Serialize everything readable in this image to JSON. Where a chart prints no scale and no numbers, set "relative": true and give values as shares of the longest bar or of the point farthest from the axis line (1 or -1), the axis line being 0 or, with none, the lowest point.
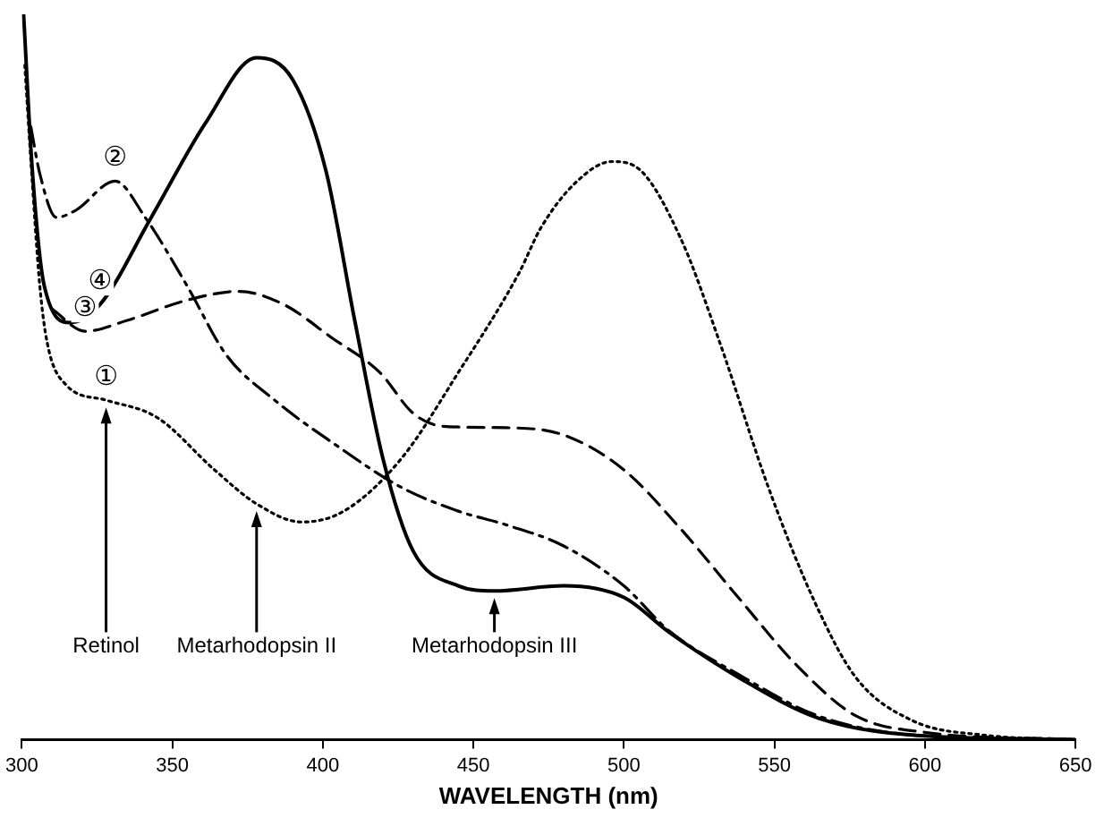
{
  "chart_data": {
    "type": "line",
    "relative": true,
    "xlabel": "WAVELENGTH (nm)",
    "xlim": [
      300,
      650
    ],
    "xticks": [
      300,
      350,
      400,
      450,
      500,
      550,
      600,
      650
    ],
    "grid": false,
    "legend": false,
    "marker": "none",
    "series": [
      {
        "name": "①",
        "color": "#000000",
        "line_style": "dotted",
        "x": [
          301,
          303,
          306,
          308.5,
          314.5,
          328,
          345,
          364,
          378,
          393,
          407,
          426,
          445,
          465,
          472.5,
          484,
          496,
          505.5,
          519,
          532,
          548,
          563.5,
          577,
          596,
          620,
          650
        ],
        "values": [
          0.93,
          0.8,
          0.625,
          0.546,
          0.49,
          0.468,
          0.444,
          0.372,
          0.325,
          0.3,
          0.315,
          0.387,
          0.506,
          0.642,
          0.706,
          0.768,
          0.797,
          0.785,
          0.69,
          0.546,
          0.348,
          0.189,
          0.086,
          0.026,
          0.006,
          0
        ]
      },
      {
        "name": "②",
        "color": "#000000",
        "line_style": "dashdot",
        "x": [
          303,
          306,
          311.5,
          318,
          331,
          341,
          355,
          368,
          384,
          403,
          426,
          445,
          461,
          480,
          500,
          515,
          538,
          565,
          600,
          650
        ],
        "values": [
          0.845,
          0.78,
          0.72,
          0.73,
          0.77,
          0.72,
          0.625,
          0.53,
          0.468,
          0.41,
          0.348,
          0.315,
          0.296,
          0.267,
          0.212,
          0.15,
          0.09,
          0.032,
          0.005,
          0
        ]
      },
      {
        "name": "③",
        "color": "#000000",
        "line_style": "dashed",
        "x": [
          310,
          321,
          335,
          355,
          372,
          387,
          403,
          419,
          430,
          440,
          461,
          480,
          500,
          519,
          538,
          558,
          577,
          600,
          650
        ],
        "values": [
          0.594,
          0.563,
          0.578,
          0.606,
          0.618,
          0.6,
          0.554,
          0.506,
          0.45,
          0.432,
          0.43,
          0.42,
          0.372,
          0.29,
          0.196,
          0.1,
          0.033,
          0.01,
          0
        ]
      },
      {
        "name": "④",
        "color": "#000000",
        "line_style": "solid",
        "x": [
          300.6,
          303.5,
          307.5,
          316,
          326,
          343,
          361,
          378,
          390,
          401,
          410.6,
          420,
          430,
          445,
          457,
          480,
          500,
          515,
          538,
          565,
          600,
          650
        ],
        "values": [
          1,
          0.785,
          0.625,
          0.575,
          0.6,
          0.72,
          0.85,
          0.94,
          0.91,
          0.785,
          0.578,
          0.387,
          0.26,
          0.212,
          0.205,
          0.212,
          0.196,
          0.148,
          0.086,
          0.029,
          0.005,
          0
        ]
      }
    ],
    "annotations": [
      {
        "text": "Retinol",
        "x": 328,
        "y": 0.468
      },
      {
        "text": "Metarhodopsin II",
        "x": 378,
        "y": 0.325
      },
      {
        "text": "Metarhodopsin III",
        "x": 457,
        "y": 0.205
      }
    ]
  }
}
